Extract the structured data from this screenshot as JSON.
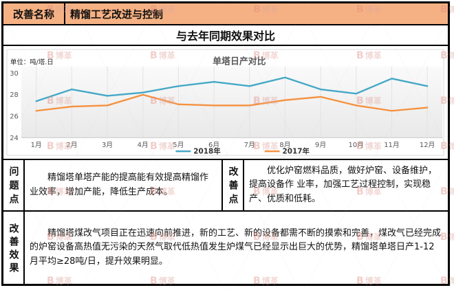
{
  "header": {
    "label": "改善名称",
    "title": "精馏工艺改进与控制"
  },
  "section_title": "与去年同期效果对比",
  "chart_data": {
    "type": "line",
    "title": "单塔日产对比",
    "unit_label": "单位：吨/塔.日",
    "categories": [
      "1月",
      "2月",
      "3月",
      "4月",
      "5月",
      "6月",
      "7月",
      "8月",
      "9月",
      "10月",
      "11月",
      "12月"
    ],
    "series": [
      {
        "name": "2018年",
        "color": "#44a8c6",
        "values": [
          27.4,
          28.5,
          27.9,
          28.2,
          28.8,
          29.2,
          28.8,
          29.6,
          28.5,
          28.1,
          29.5,
          28.8
        ]
      },
      {
        "name": "2017年",
        "color": "#f5913f",
        "values": [
          26.5,
          26.9,
          27.0,
          28.0,
          27.1,
          27.0,
          27.0,
          27.5,
          27.8,
          27.0,
          26.5,
          26.8
        ]
      }
    ],
    "ylim": [
      24,
      30
    ],
    "yticks": [
      30,
      28,
      26,
      24
    ],
    "xlabel": "",
    "ylabel": "",
    "grid": "vertical",
    "legend_position": "bottom"
  },
  "problem": {
    "label": "问题点",
    "text": "精馏塔单塔产能的提高能有效提高精馏作业效率，增加产能，降低生产成本。"
  },
  "improvement": {
    "label": "改善点",
    "text": "优化炉窑燃料品质，做好炉窑、设备维护，提高设备作 业率，加强工艺过程控制，实现稳产、优质和低耗。"
  },
  "effect": {
    "label": "改善效果",
    "text": "精馏塔煤改气项目正在迅速向前推进，新的工艺、新的设备都需不断的摸索和完善，煤改气已经完成的炉窑设备高热值无污染的天然气取代低热值发生炉煤气已经显示出巨大的优势，精馏塔单塔日产1-12月平均≥28吨/日，提升效果明显。"
  },
  "watermark": {
    "letter": "B",
    "text": "博革",
    "color": "#e08a80"
  },
  "colors": {
    "header_bg": "#f5b183",
    "series_2018": "#44a8c6",
    "series_2017": "#f5913f",
    "border": "#000000",
    "axis_text": "#595959"
  }
}
